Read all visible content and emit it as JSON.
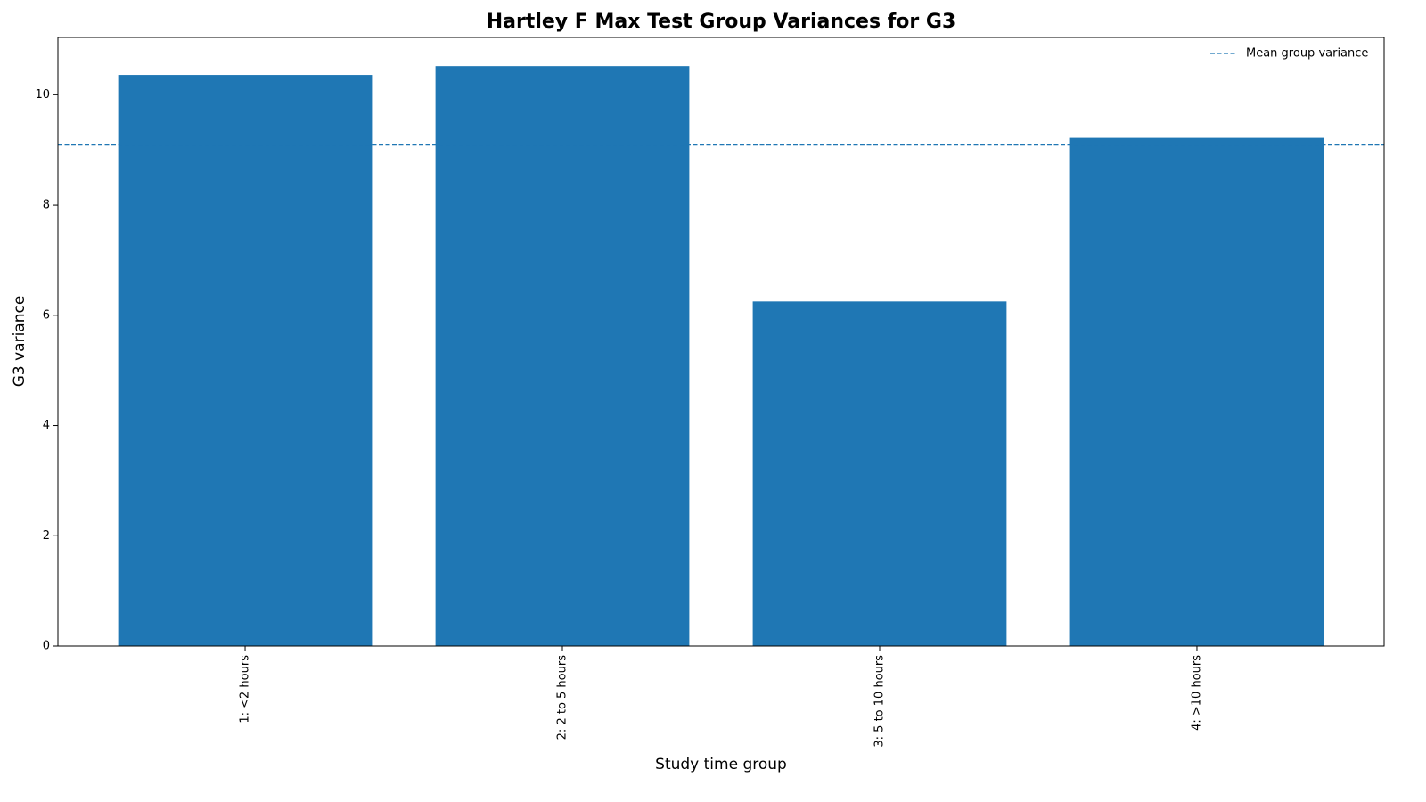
{
  "chart_data": {
    "type": "bar",
    "title": "Hartley F Max Test Group Variances for G3",
    "x_label": "Study time group",
    "y_label": "G3 variance",
    "categories": [
      "1: <2 hours",
      "2: 2 to 5 hours",
      "3: 5 to 10 hours",
      "4: >10 hours"
    ],
    "values": [
      10.36,
      10.52,
      6.25,
      9.22
    ],
    "color": "#1f77b4",
    "mean_line": {
      "name": "Mean group variance",
      "value": 9.09,
      "color": "#1f77b4"
    },
    "ylim": [
      0,
      11.04
    ],
    "yticks": [
      0,
      2,
      4,
      6,
      8,
      10
    ],
    "grid": false,
    "legend": "upper right"
  }
}
